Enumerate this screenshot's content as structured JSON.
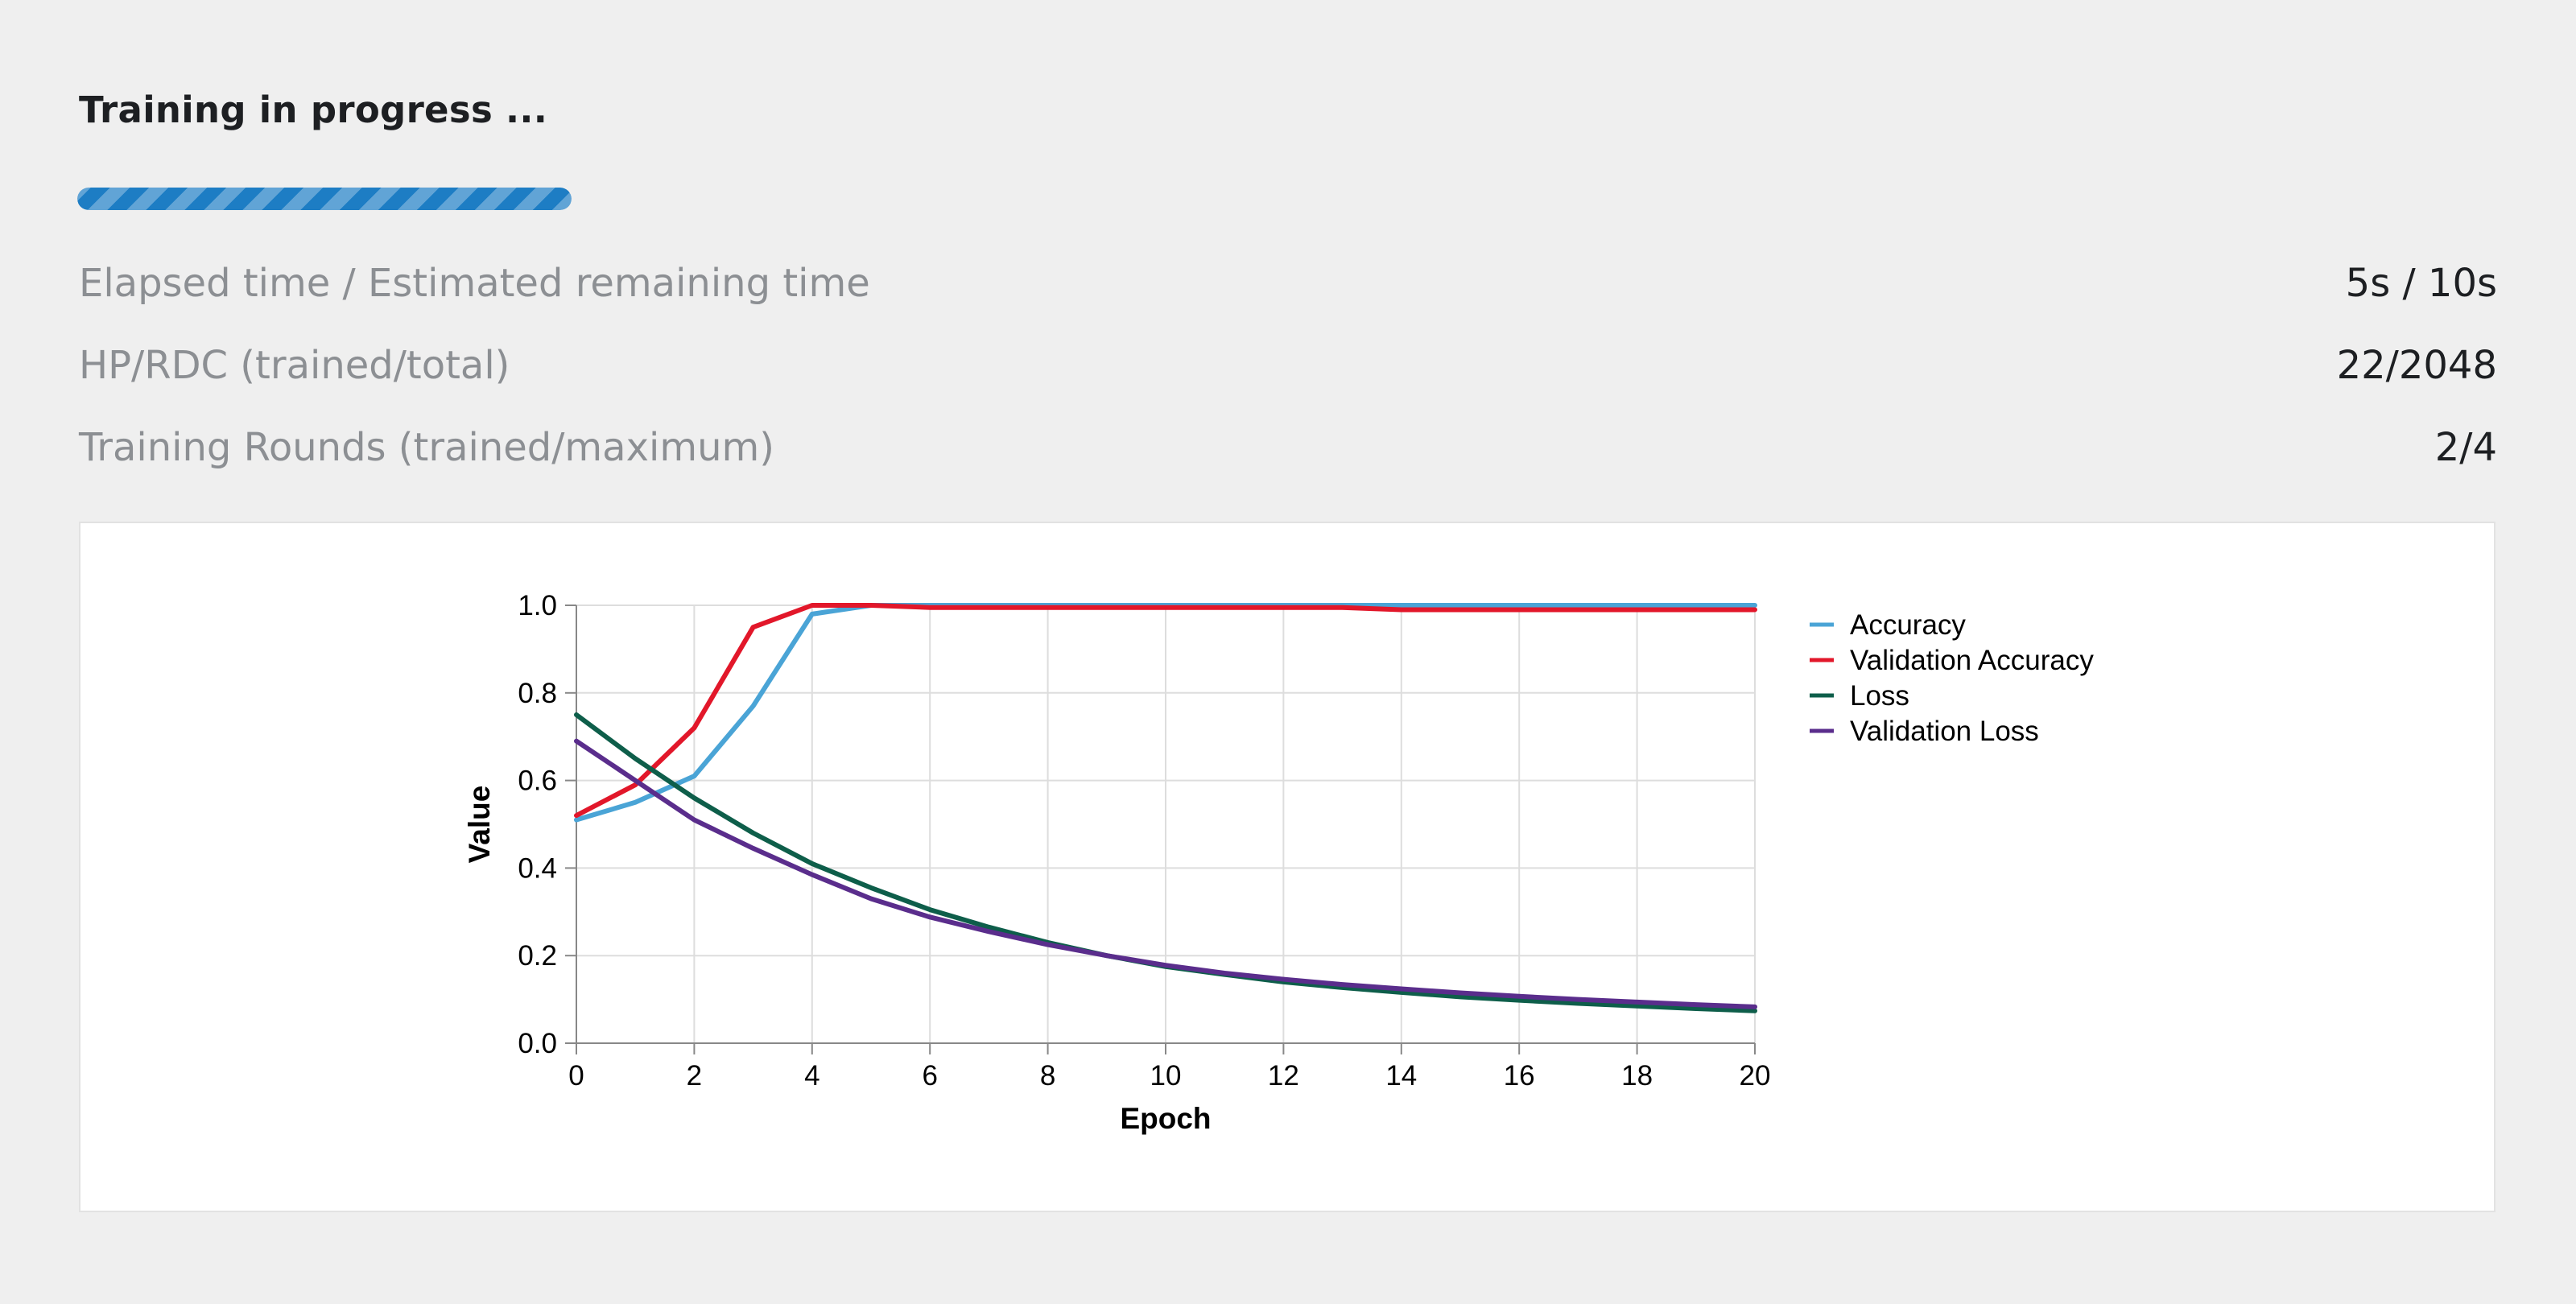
{
  "header": {
    "title": "Training in progress ..."
  },
  "progress": {
    "fraction": 1.0,
    "color": "#1d7dc4"
  },
  "stats": [
    {
      "label": "Elapsed time / Estimated remaining time",
      "value": "5s / 10s"
    },
    {
      "label": "HP/RDC (trained/total)",
      "value": "22/2048"
    },
    {
      "label": "Training Rounds (trained/maximum)",
      "value": "2/4"
    }
  ],
  "chart_data": {
    "type": "line",
    "xlabel": "Epoch",
    "ylabel": "Value",
    "xlim": [
      0,
      20
    ],
    "ylim": [
      0,
      1.0
    ],
    "x_ticks": [
      "0",
      "2",
      "4",
      "6",
      "8",
      "10",
      "12",
      "14",
      "16",
      "18",
      "20"
    ],
    "y_ticks": [
      "0.0",
      "0.2",
      "0.4",
      "0.6",
      "0.8",
      "1.0"
    ],
    "grid": true,
    "legend_position": "right",
    "x": [
      0,
      1,
      2,
      3,
      4,
      5,
      6,
      7,
      8,
      9,
      10,
      11,
      12,
      13,
      14,
      15,
      16,
      17,
      18,
      19,
      20
    ],
    "series": [
      {
        "name": "Accuracy",
        "color": "#4aa4d6",
        "values": [
          0.51,
          0.55,
          0.61,
          0.77,
          0.98,
          1.0,
          1.0,
          1.0,
          1.0,
          1.0,
          1.0,
          1.0,
          1.0,
          1.0,
          1.0,
          1.0,
          1.0,
          1.0,
          1.0,
          1.0,
          1.0
        ]
      },
      {
        "name": "Validation Accuracy",
        "color": "#e2172a",
        "values": [
          0.52,
          0.59,
          0.72,
          0.95,
          1.0,
          1.0,
          0.995,
          0.995,
          0.995,
          0.995,
          0.995,
          0.995,
          0.995,
          0.995,
          0.99,
          0.99,
          0.99,
          0.99,
          0.99,
          0.99,
          0.99
        ]
      },
      {
        "name": "Loss",
        "color": "#0e5e4a",
        "values": [
          0.75,
          0.65,
          0.56,
          0.48,
          0.41,
          0.355,
          0.305,
          0.265,
          0.23,
          0.2,
          0.175,
          0.157,
          0.14,
          0.127,
          0.116,
          0.106,
          0.098,
          0.091,
          0.085,
          0.079,
          0.074
        ]
      },
      {
        "name": "Validation Loss",
        "color": "#5a2d8c",
        "values": [
          0.69,
          0.6,
          0.51,
          0.445,
          0.385,
          0.33,
          0.288,
          0.255,
          0.225,
          0.2,
          0.178,
          0.16,
          0.146,
          0.134,
          0.124,
          0.115,
          0.107,
          0.1,
          0.094,
          0.088,
          0.083
        ]
      }
    ]
  }
}
